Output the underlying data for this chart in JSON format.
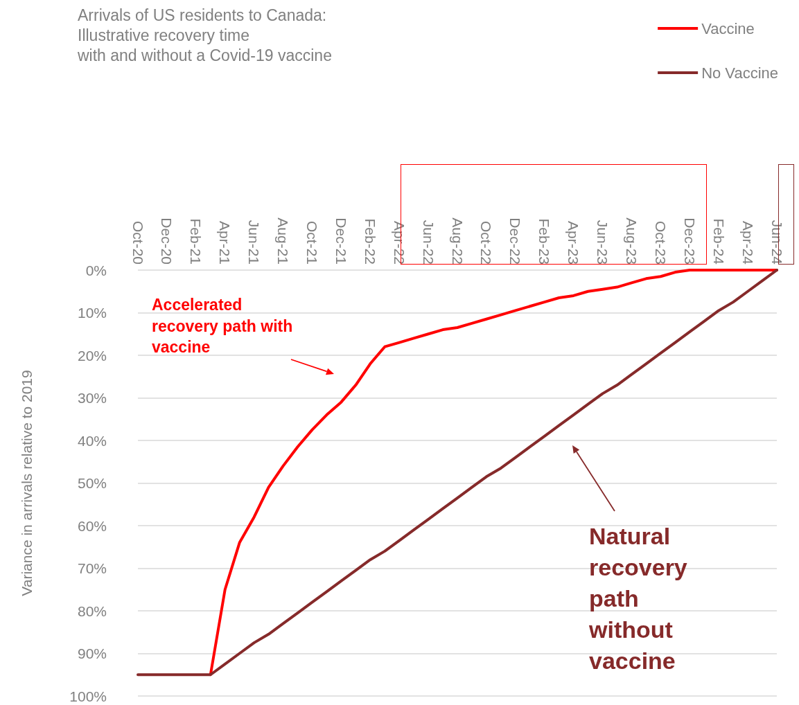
{
  "chart_data": {
    "type": "line",
    "title": "Arrivals of US residents to Canada:\nIllustrative recovery time\nwith and without a Covid-19 vaccine",
    "ylabel": "Variance in arrivals relative to 2019",
    "categories": [
      "Oct-20",
      null,
      "Dec-20",
      null,
      "Feb-21",
      null,
      "Apr-21",
      null,
      "Jun-21",
      null,
      "Aug-21",
      null,
      "Oct-21",
      null,
      "Dec-21",
      null,
      "Feb-22",
      null,
      "Apr-22",
      null,
      "Jun-22",
      null,
      "Aug-22",
      null,
      "Oct-22",
      null,
      "Dec-22",
      null,
      "Feb-23",
      null,
      "Apr-23",
      null,
      "Jun-23",
      null,
      "Aug-23",
      null,
      "Oct-23",
      null,
      "Dec-23",
      null,
      "Feb-24",
      null,
      "Apr-24",
      null,
      "Jun-24"
    ],
    "series": [
      {
        "name": "Vaccine",
        "color": "#ff0000",
        "values": [
          null,
          null,
          null,
          null,
          null,
          95,
          75,
          64,
          58,
          51,
          46,
          41.5,
          37.5,
          34,
          31,
          27,
          22,
          18,
          17,
          16,
          15,
          14,
          13.5,
          12.5,
          11.5,
          10.5,
          9.5,
          8.5,
          7.5,
          6.5,
          6,
          5,
          4.5,
          4,
          3,
          2,
          1.5,
          0.5,
          0,
          0,
          0,
          0,
          0,
          0,
          0
        ]
      },
      {
        "name": "No Vaccine",
        "color": "#862a2a",
        "values": [
          95,
          95,
          95,
          95,
          95,
          95,
          92.5,
          90,
          87.5,
          85.5,
          83,
          80.5,
          78,
          75.5,
          73,
          70.5,
          68,
          66,
          63.5,
          61,
          58.5,
          56,
          53.5,
          51,
          48.5,
          46.5,
          44,
          41.5,
          39,
          36.5,
          34,
          31.5,
          29,
          27,
          24.5,
          22,
          19.5,
          17,
          14.5,
          12,
          9.5,
          7.5,
          5,
          2.5,
          0
        ]
      }
    ],
    "ylim": [
      100,
      0
    ],
    "yticks": [
      {
        "value": 0,
        "label": "0%"
      },
      {
        "value": 10,
        "label": "10%"
      },
      {
        "value": 20,
        "label": "20%"
      },
      {
        "value": 30,
        "label": "30%"
      },
      {
        "value": 40,
        "label": "40%"
      },
      {
        "value": 50,
        "label": "50%"
      },
      {
        "value": 60,
        "label": "60%"
      },
      {
        "value": 70,
        "label": "70%"
      },
      {
        "value": 80,
        "label": "80%"
      },
      {
        "value": 90,
        "label": "90%"
      },
      {
        "value": 100,
        "label": "100%"
      }
    ],
    "grid": "y",
    "legend": "top right",
    "marker": "none",
    "line_style": "solid",
    "annotations": [
      "Accelerated\nrecovery path with\nvaccine",
      "Natural\nrecovery\npath\nwithout\nvaccine"
    ]
  }
}
